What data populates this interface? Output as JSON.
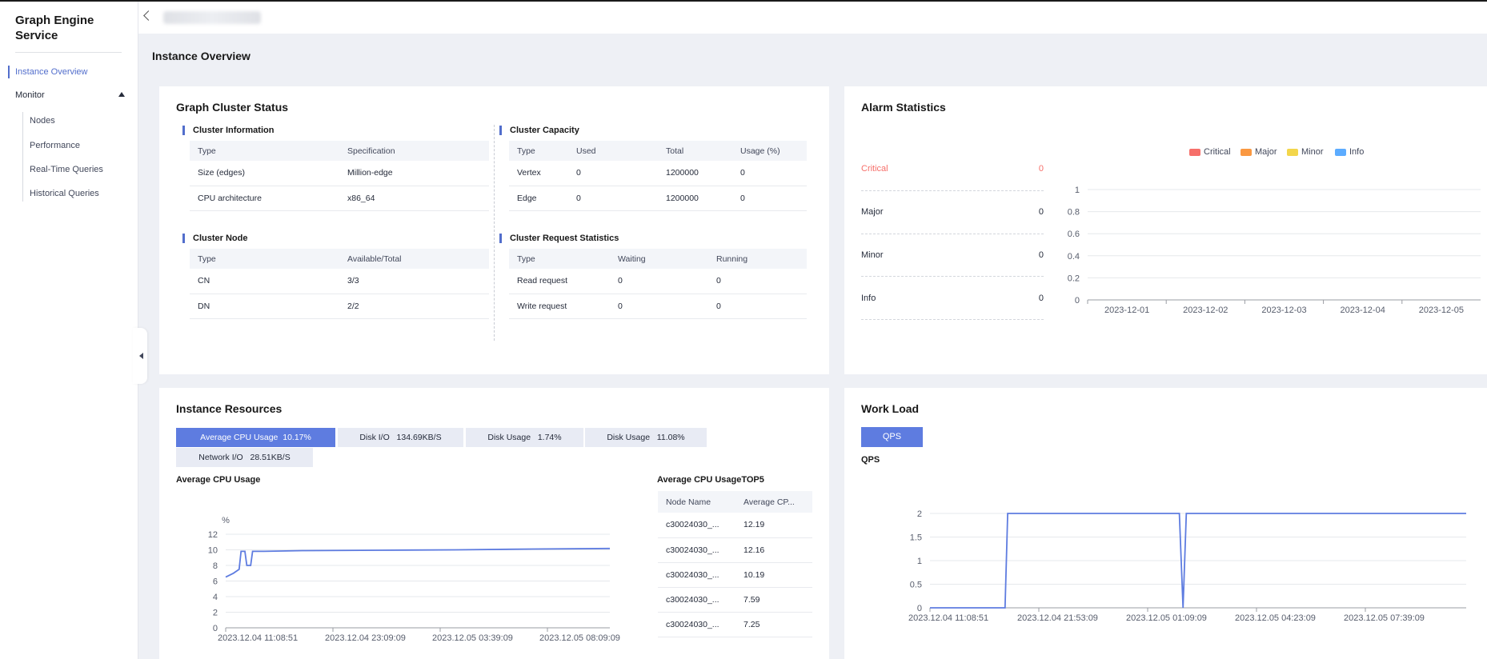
{
  "brand": "Graph Engine Service",
  "nav": {
    "active": "Instance Overview",
    "monitor": "Monitor",
    "items": [
      "Nodes",
      "Performance",
      "Real-Time Queries",
      "Historical Queries"
    ]
  },
  "page_title": "Instance Overview",
  "cluster_status": {
    "title": "Graph Cluster Status",
    "info": {
      "title": "Cluster Information",
      "headers": [
        "Type",
        "Specification"
      ],
      "rows": [
        [
          "Size (edges)",
          "Million-edge"
        ],
        [
          "CPU architecture",
          "x86_64"
        ]
      ]
    },
    "capacity": {
      "title": "Cluster Capacity",
      "headers": [
        "Type",
        "Used",
        "Total",
        "Usage (%)"
      ],
      "rows": [
        [
          "Vertex",
          "0",
          "1200000",
          "0"
        ],
        [
          "Edge",
          "0",
          "1200000",
          "0"
        ]
      ]
    },
    "node": {
      "title": "Cluster Node",
      "headers": [
        "Type",
        "Available/Total"
      ],
      "rows": [
        [
          "CN",
          "3/3"
        ],
        [
          "DN",
          "2/2"
        ]
      ]
    },
    "requests": {
      "title": "Cluster Request Statistics",
      "headers": [
        "Type",
        "Waiting",
        "Running"
      ],
      "rows": [
        [
          "Read request",
          "0",
          "0"
        ],
        [
          "Write request",
          "0",
          "0"
        ]
      ]
    }
  },
  "alarm": {
    "title": "Alarm Statistics",
    "rows": [
      {
        "label": "Critical",
        "value": "0"
      },
      {
        "label": "Major",
        "value": "0"
      },
      {
        "label": "Minor",
        "value": "0"
      },
      {
        "label": "Info",
        "value": "0"
      }
    ],
    "legend": [
      {
        "label": "Critical",
        "color": "#f66f6a"
      },
      {
        "label": "Major",
        "color": "#fa9841"
      },
      {
        "label": "Minor",
        "color": "#f3d64b"
      },
      {
        "label": "Info",
        "color": "#5cacff"
      }
    ],
    "critical_color": "#f66f6a"
  },
  "resources": {
    "title": "Instance Resources",
    "tabs": [
      {
        "label": "Average CPU Usage",
        "value": "10.17%"
      },
      {
        "label": "Disk I/O",
        "value": "134.69KB/S"
      },
      {
        "label": "Disk Usage",
        "value": "1.74%"
      },
      {
        "label": "Disk Usage",
        "value": "11.08%"
      },
      {
        "label": "Network I/O",
        "value": "28.51KB/S"
      }
    ],
    "chart_title": "Average CPU Usage",
    "top5": {
      "title": "Average CPU UsageTOP5",
      "headers": [
        "Node Name",
        "Average CP..."
      ],
      "rows": [
        [
          "c30024030_...",
          "12.19"
        ],
        [
          "c30024030_...",
          "12.16"
        ],
        [
          "c30024030_...",
          "10.19"
        ],
        [
          "c30024030_...",
          "7.59"
        ],
        [
          "c30024030_...",
          "7.25"
        ]
      ]
    }
  },
  "workload": {
    "title": "Work Load",
    "button": "QPS",
    "chart_title": "QPS"
  },
  "chart_data": [
    {
      "type": "line",
      "chart": "alarm",
      "categories": [
        "2023-12-01",
        "2023-12-02",
        "2023-12-03",
        "2023-12-04",
        "2023-12-05"
      ],
      "series": [
        {
          "name": "Critical",
          "values": [
            0,
            0,
            0,
            0,
            0
          ]
        },
        {
          "name": "Major",
          "values": [
            0,
            0,
            0,
            0,
            0
          ]
        },
        {
          "name": "Minor",
          "values": [
            0,
            0,
            0,
            0,
            0
          ]
        },
        {
          "name": "Info",
          "values": [
            0,
            0,
            0,
            0,
            0
          ]
        }
      ],
      "yticks": [
        "0",
        "0.2",
        "0.4",
        "0.6",
        "0.8",
        "1"
      ],
      "ylim": [
        0,
        1
      ],
      "legend": "top-right"
    },
    {
      "type": "line",
      "chart": "cpu",
      "ylabel": "%",
      "ylim": [
        0,
        12
      ],
      "yticks": [
        "0",
        "2",
        "4",
        "6",
        "8",
        "10",
        "12"
      ],
      "xticks": [
        "2023.12.04 11:08:51",
        "2023.12.04 23:09:09",
        "2023.12.05 03:39:09",
        "2023.12.05 08:09:09"
      ],
      "x": [
        0,
        0.02,
        0.035,
        0.04,
        0.05,
        0.055,
        0.065,
        0.07,
        0.1,
        0.2,
        0.4,
        0.6,
        0.8,
        1.0
      ],
      "values": [
        6.5,
        7,
        7.5,
        9.8,
        9.8,
        8,
        8,
        9.8,
        9.8,
        9.9,
        9.95,
        10.0,
        10.1,
        10.17
      ],
      "grid": true
    },
    {
      "type": "line",
      "chart": "qps",
      "ylim": [
        0,
        2
      ],
      "yticks": [
        "0",
        "0.5",
        "1",
        "1.5",
        "2"
      ],
      "xticks": [
        "2023.12.04 11:08:51",
        "2023.12.04 21:53:09",
        "2023.12.05 01:09:09",
        "2023.12.05 04:23:09",
        "2023.12.05 07:39:09"
      ],
      "x": [
        0,
        0.14,
        0.145,
        0.465,
        0.472,
        0.478,
        1.0
      ],
      "values": [
        0,
        0,
        2,
        2,
        0,
        2,
        2
      ],
      "grid": true
    }
  ]
}
